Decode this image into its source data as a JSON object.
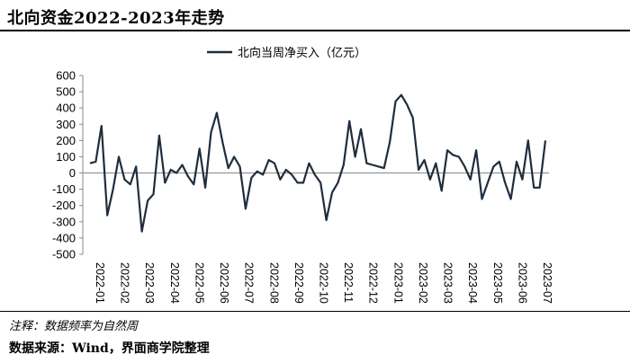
{
  "page": {
    "title": "北向资金2022-2023年走势",
    "note": "注释：数据频率为自然周",
    "source": "数据来源：Wind，界面商学院整理"
  },
  "chart_data": {
    "type": "line",
    "legend": "北向当周净买入（亿元）",
    "legend_position": "top-center",
    "series_color": "#1f2d3d",
    "ylim": [
      -500,
      600
    ],
    "yticks": [
      -500,
      -400,
      -300,
      -200,
      -100,
      0,
      100,
      200,
      300,
      400,
      500,
      600
    ],
    "grid": false,
    "xticks": [
      "2022-01",
      "2022-02",
      "2022-03",
      "2022-04",
      "2022-05",
      "2022-06",
      "2022-07",
      "2022-08",
      "2022-09",
      "2022-10",
      "2022-11",
      "2022-12",
      "2023-01",
      "2023-02",
      "2023-03",
      "2023-04",
      "2023-05",
      "2023-06",
      "2023-07"
    ],
    "series": [
      {
        "values": [
          60,
          70,
          290,
          -260,
          -100,
          100,
          -40,
          -70,
          40,
          -360,
          -170,
          -130,
          230,
          -60,
          20,
          0,
          50,
          -20,
          -70,
          150,
          -90,
          250,
          370,
          190,
          30,
          100,
          40,
          -220,
          -30,
          10,
          -10,
          80,
          60,
          -40,
          20,
          -10,
          -60,
          -60,
          60,
          -10,
          -60,
          -290,
          -120,
          -60,
          50,
          320,
          100,
          270,
          60,
          50,
          40,
          30,
          190,
          440,
          480,
          420,
          340,
          20,
          80,
          -40,
          60,
          -110,
          140,
          110,
          100,
          40,
          -40,
          140,
          -160,
          -60,
          40,
          70,
          -60,
          -160,
          70,
          -40,
          200,
          -90,
          -90,
          200
        ]
      }
    ]
  }
}
